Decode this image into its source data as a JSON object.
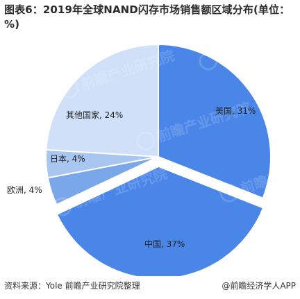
{
  "title": "图表6：2019年全球NAND闪存市场销售额区域分布(单位：%)",
  "source": "资料来源：Yole 前瞻产业研究院整理",
  "brand": "@前瞻经济学人APP",
  "watermark": "前瞻产业研究院",
  "chart_data": {
    "type": "pie",
    "title": "图表6：2019年全球NAND闪存市场销售额区域分布(单位：%)",
    "unit": "%",
    "slices": [
      {
        "label": "美国",
        "value": 31,
        "text": "美国, 31%",
        "color": "#4a86e8"
      },
      {
        "label": "中国",
        "value": 37,
        "text": "中国, 37%",
        "color": "#4a86e8"
      },
      {
        "label": "欧洲",
        "value": 4,
        "text": "欧洲, 4%",
        "color": "#7aa6ea"
      },
      {
        "label": "日本",
        "value": 4,
        "text": "日本, 4%",
        "color": "#a9c6f0"
      },
      {
        "label": "其他国家",
        "value": 24,
        "text": "其他国家, 24%",
        "color": "#cfe0f8"
      }
    ],
    "legend": "none",
    "data_labels": "inside/adjacent"
  }
}
